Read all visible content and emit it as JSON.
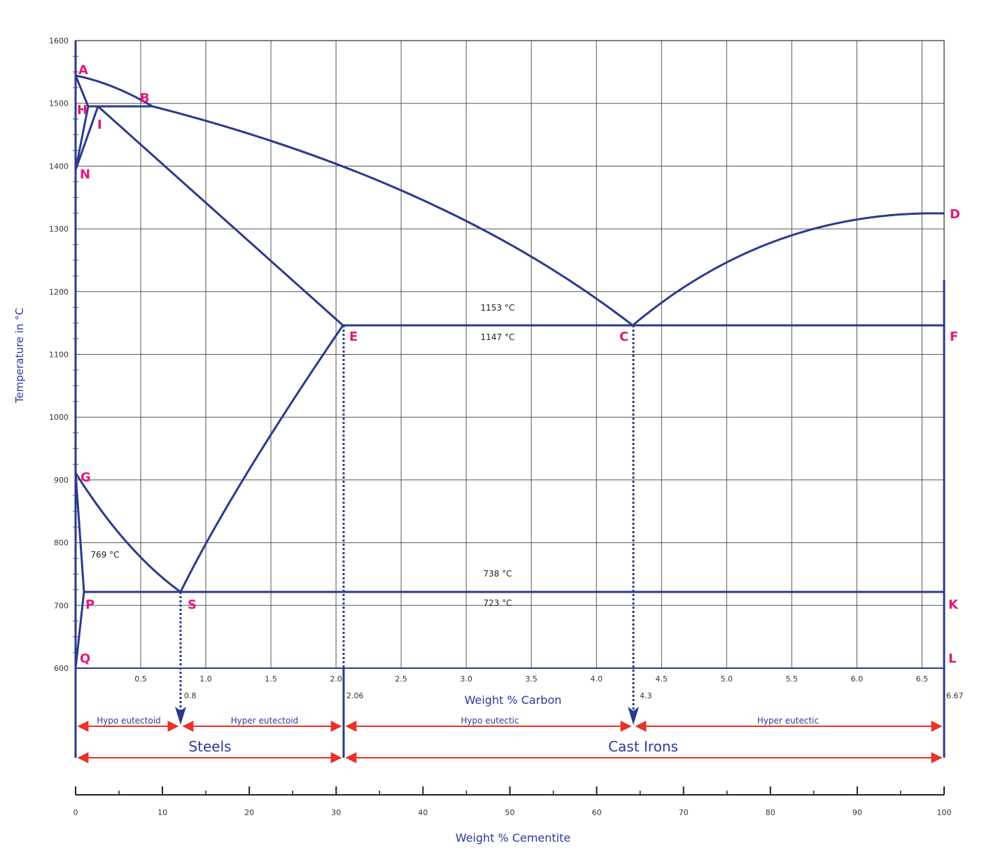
{
  "colors": {
    "line": "#2b3a8c",
    "grid": "#555555",
    "point_label": "#e6177a",
    "arrow": "#e8322a",
    "text_blue": "#2b3aa0"
  },
  "y_axis": {
    "title": "Temperature in °C",
    "ticks": [
      600,
      700,
      800,
      900,
      1000,
      1100,
      1200,
      1300,
      1400,
      1500,
      1600
    ],
    "range": [
      600,
      1600
    ]
  },
  "x_axis": {
    "title": "Weight % Carbon",
    "ticks": [
      0.5,
      1.0,
      1.5,
      2.0,
      2.5,
      3.0,
      3.5,
      4.0,
      4.5,
      5.0,
      5.5,
      6.0,
      6.5
    ],
    "tick_labels": [
      "0.5",
      "1.0",
      "1.5",
      "2.0",
      "2.5",
      "3.0",
      "3.5",
      "4.0",
      "4.5",
      "5.0",
      "5.5",
      "6.0",
      "6.5"
    ],
    "range": [
      0,
      6.67
    ]
  },
  "cementite_axis": {
    "title": "Weight % Cementite",
    "ticks": [
      0,
      10,
      20,
      30,
      40,
      50,
      60,
      70,
      80,
      90,
      100
    ]
  },
  "points": [
    {
      "id": "A",
      "label": "A",
      "c": 0.0,
      "t": 1538
    },
    {
      "id": "B",
      "label": "B",
      "c": 0.6,
      "t": 1495
    },
    {
      "id": "H",
      "label": "H",
      "c": 0.1,
      "t": 1495
    },
    {
      "id": "I",
      "label": "I",
      "c": 0.18,
      "t": 1495
    },
    {
      "id": "N",
      "label": "N",
      "c": 0.0,
      "t": 1394
    },
    {
      "id": "D",
      "label": "D",
      "c": 6.67,
      "t": 1325
    },
    {
      "id": "E",
      "label": "E",
      "c": 2.06,
      "t": 1147
    },
    {
      "id": "C",
      "label": "C",
      "c": 4.3,
      "t": 1147
    },
    {
      "id": "F",
      "label": "F",
      "c": 6.67,
      "t": 1147
    },
    {
      "id": "G",
      "label": "G",
      "c": 0.0,
      "t": 910
    },
    {
      "id": "P",
      "label": "P",
      "c": 0.06,
      "t": 723
    },
    {
      "id": "S",
      "label": "S",
      "c": 0.8,
      "t": 723
    },
    {
      "id": "K",
      "label": "K",
      "c": 6.67,
      "t": 723
    },
    {
      "id": "Q",
      "label": "Q",
      "c": 0.0,
      "t": 600
    },
    {
      "id": "L",
      "label": "L",
      "c": 6.67,
      "t": 600
    }
  ],
  "temperature_labels": [
    "1153 °C",
    "1147 °C",
    "769 °C",
    "738 °C",
    "723 °C"
  ],
  "composition_values": [
    "0.8",
    "2.06",
    "4.3",
    "6.67"
  ],
  "range_labels": {
    "hypo_eutectoid": "Hypo eutectoid",
    "hyper_eutectoid": "Hyper eutectoid",
    "hypo_eutectic": "Hypo eutectic",
    "hyper_eutectic": "Hyper eutectic"
  },
  "regions": {
    "steels": "Steels",
    "cast_irons": "Cast Irons"
  }
}
